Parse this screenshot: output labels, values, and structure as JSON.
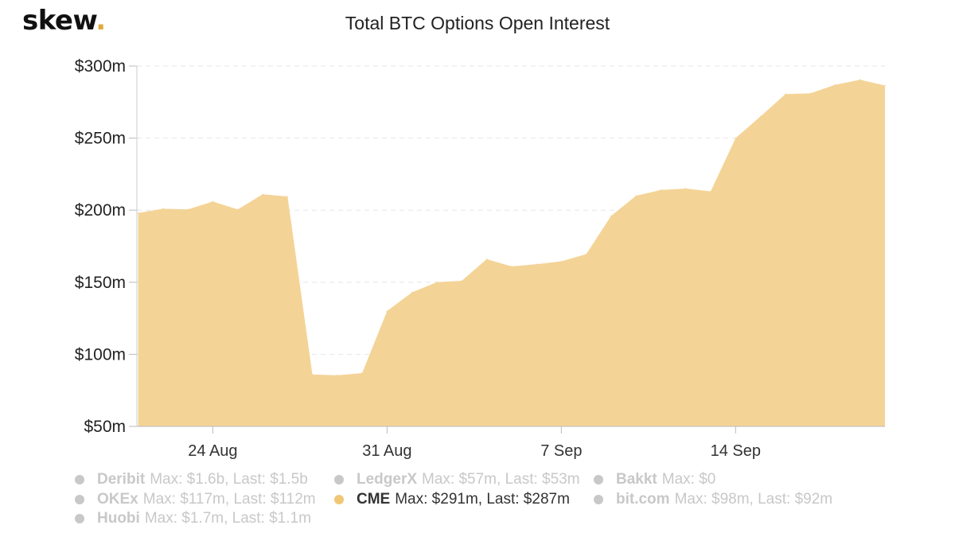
{
  "branding": {
    "logo_text": "skew",
    "logo_dot": ".",
    "accent_color": "#e0a93b"
  },
  "chart_data": {
    "type": "area",
    "title": "Total BTC Options Open Interest",
    "xlabel": "",
    "ylabel": "",
    "x_ticks": [
      "24 Aug",
      "31 Aug",
      "7 Sep",
      "14 Sep"
    ],
    "y_ticks": [
      "$50m",
      "$100m",
      "$150m",
      "$200m",
      "$250m",
      "$300m"
    ],
    "ylim": [
      50,
      300
    ],
    "y_unit": "$m",
    "grid": true,
    "legend_position": "bottom",
    "x": [
      "2020-08-21",
      "2020-08-22",
      "2020-08-23",
      "2020-08-24",
      "2020-08-25",
      "2020-08-26",
      "2020-08-27",
      "2020-08-28",
      "2020-08-29",
      "2020-08-30",
      "2020-08-31",
      "2020-09-01",
      "2020-09-02",
      "2020-09-03",
      "2020-09-04",
      "2020-09-05",
      "2020-09-06",
      "2020-09-07",
      "2020-09-08",
      "2020-09-09",
      "2020-09-10",
      "2020-09-11",
      "2020-09-12",
      "2020-09-13",
      "2020-09-14",
      "2020-09-15",
      "2020-09-16",
      "2020-09-17",
      "2020-09-18",
      "2020-09-19",
      "2020-09-20"
    ],
    "series": [
      {
        "name": "CME",
        "color": "#f4d396",
        "visible": true,
        "values": [
          198,
          201,
          200.5,
          206,
          200.5,
          211,
          209.5,
          86,
          85.5,
          87,
          130,
          143,
          150,
          151,
          166,
          161,
          162.5,
          164.5,
          169.5,
          196,
          210,
          214,
          215,
          213,
          250,
          265,
          280.5,
          281,
          287,
          290.5,
          286.5
        ]
      }
    ]
  },
  "legend": {
    "items": [
      {
        "name": "Deribit",
        "stats": "Max: $1.6b, Last: $1.5b",
        "active": false
      },
      {
        "name": "LedgerX",
        "stats": "Max: $57m, Last: $53m",
        "active": false
      },
      {
        "name": "Bakkt",
        "stats": "Max: $0",
        "active": false
      },
      {
        "name": "OKEx",
        "stats": "Max: $117m, Last: $112m",
        "active": false
      },
      {
        "name": "CME",
        "stats": "Max: $291m, Last: $287m",
        "active": true
      },
      {
        "name": "bit.com",
        "stats": "Max: $98m, Last: $92m",
        "active": false
      },
      {
        "name": "Huobi",
        "stats": "Max: $1.7m, Last: $1.1m",
        "active": false
      }
    ],
    "active_color": "#f0c775",
    "inactive_color": "#c8c8c8"
  }
}
